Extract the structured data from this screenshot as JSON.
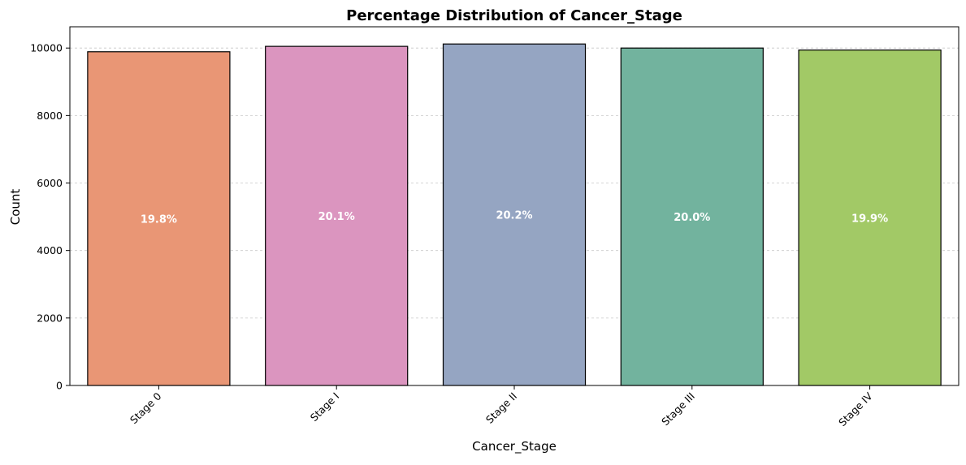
{
  "chart_data": {
    "type": "bar",
    "title": "Percentage Distribution of Cancer_Stage",
    "xlabel": "Cancer_Stage",
    "ylabel": "Count",
    "categories": [
      "Stage 0",
      "Stage I",
      "Stage II",
      "Stage III",
      "Stage IV"
    ],
    "values": [
      9890,
      10050,
      10120,
      10000,
      9940
    ],
    "data_labels": [
      "19.8%",
      "20.1%",
      "20.2%",
      "20.0%",
      "19.9%"
    ],
    "colors": [
      "#e99675",
      "#db95bf",
      "#95a5c2",
      "#72b39e",
      "#a2c966"
    ],
    "ylim": [
      0,
      10630
    ],
    "yticks": [
      0,
      2000,
      4000,
      6000,
      8000,
      10000
    ],
    "grid": "y-dashed",
    "legend": "none"
  }
}
